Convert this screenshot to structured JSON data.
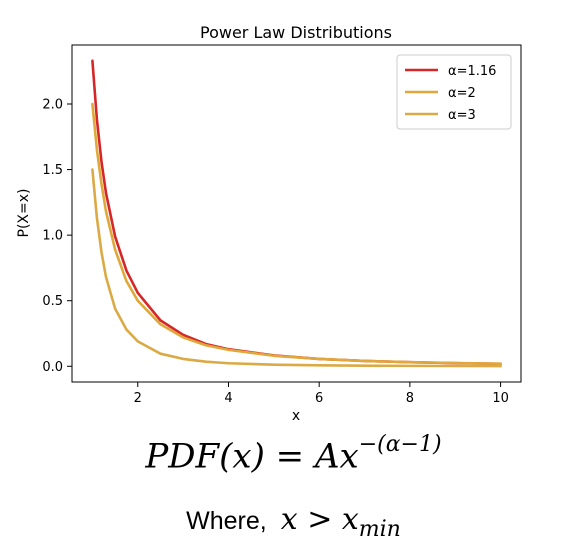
{
  "chart_data": {
    "type": "line",
    "title": "Power Law Distributions",
    "xlabel": "x",
    "ylabel": "P(X=x)",
    "xlim": [
      0.55,
      10.45
    ],
    "ylim": [
      -0.12,
      2.45
    ],
    "xticks": [
      2,
      4,
      6,
      8,
      10
    ],
    "yticks": [
      0.0,
      0.5,
      1.0,
      1.5,
      2.0
    ],
    "xtick_labels": [
      "2",
      "4",
      "6",
      "8",
      "10"
    ],
    "ytick_labels": [
      "0.0",
      "0.5",
      "1.0",
      "1.5",
      "2.0"
    ],
    "grid": false,
    "legend_position": "top-right",
    "x": [
      1.0,
      1.1,
      1.2,
      1.3,
      1.5,
      1.75,
      2.0,
      2.5,
      3.0,
      3.5,
      4.0,
      5.0,
      6.0,
      7.0,
      8.0,
      9.0,
      10.0
    ],
    "series": [
      {
        "name": "α=1.16",
        "color": "#d62728",
        "values": [
          2.33,
          1.88,
          1.56,
          1.32,
          0.99,
          0.73,
          0.56,
          0.35,
          0.24,
          0.17,
          0.13,
          0.083,
          0.056,
          0.041,
          0.031,
          0.024,
          0.019
        ]
      },
      {
        "name": "α=2",
        "color": "#e0a83a",
        "values": [
          2.0,
          1.65,
          1.39,
          1.18,
          0.89,
          0.65,
          0.5,
          0.32,
          0.22,
          0.16,
          0.125,
          0.08,
          0.056,
          0.041,
          0.031,
          0.025,
          0.02
        ]
      },
      {
        "name": "α=3",
        "color": "#dbaa45",
        "values": [
          1.5,
          1.13,
          0.87,
          0.68,
          0.44,
          0.28,
          0.19,
          0.096,
          0.056,
          0.035,
          0.023,
          0.012,
          0.0069,
          0.0044,
          0.0029,
          0.0021,
          0.0015
        ]
      }
    ]
  },
  "formula": {
    "lhs": "PDF(x) = Ax",
    "exponent": "−(α−1)"
  },
  "where": {
    "label": "Where,",
    "expr": "x > x",
    "sub": "min"
  }
}
